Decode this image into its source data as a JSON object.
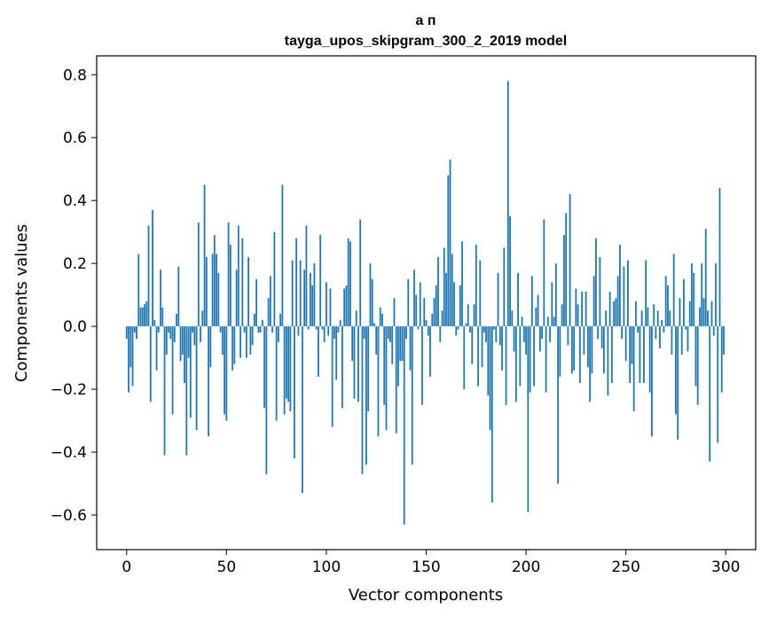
{
  "chart_data": {
    "type": "bar",
    "title_line1": "а п",
    "title_line2": "tayga_upos_skipgram_300_2_2019 model",
    "xlabel": "Vector components",
    "ylabel": "Components values",
    "xlim": [
      -15,
      315
    ],
    "ylim": [
      -0.71,
      0.86
    ],
    "xticks": [
      0,
      50,
      100,
      150,
      200,
      250,
      300
    ],
    "xtick_labels": [
      "0",
      "50",
      "100",
      "150",
      "200",
      "250",
      "300"
    ],
    "yticks": [
      -0.6,
      -0.4,
      -0.2,
      0.0,
      0.2,
      0.4,
      0.6,
      0.8
    ],
    "ytick_labels": [
      "−0.6",
      "−0.4",
      "−0.2",
      "0.0",
      "0.2",
      "0.4",
      "0.6",
      "0.8"
    ],
    "bar_color": "#1f77b4",
    "values": [
      -0.04,
      -0.21,
      -0.13,
      -0.19,
      -0.02,
      -0.04,
      0.23,
      0.06,
      0.06,
      0.07,
      0.08,
      0.32,
      -0.24,
      0.37,
      0.02,
      -0.14,
      -0.02,
      0.18,
      0.06,
      -0.41,
      -0.09,
      -0.02,
      -0.04,
      -0.28,
      -0.05,
      0.04,
      0.19,
      -0.11,
      -0.09,
      -0.18,
      -0.41,
      -0.1,
      -0.29,
      -0.02,
      -0.06,
      -0.33,
      0.33,
      -0.05,
      0.05,
      0.45,
      0.22,
      -0.35,
      -0.13,
      0.23,
      0.29,
      0.23,
      0.17,
      -0.02,
      -0.09,
      -0.28,
      -0.3,
      0.33,
      0.26,
      -0.14,
      -0.12,
      0.18,
      0.32,
      -0.1,
      0.28,
      -0.02,
      -0.1,
      0.22,
      -0.09,
      -0.06,
      0.04,
      0.15,
      -0.02,
      -0.02,
      0.02,
      -0.26,
      -0.47,
      0.09,
      0.16,
      -0.02,
      0.3,
      -0.3,
      -0.05,
      0.04,
      0.45,
      -0.28,
      -0.23,
      -0.24,
      -0.27,
      0.21,
      -0.42,
      0.28,
      -0.03,
      0.21,
      -0.53,
      0.18,
      0.32,
      -0.01,
      0.17,
      0.13,
      0.2,
      -0.01,
      -0.16,
      0.29,
      -0.01,
      -0.05,
      0.14,
      -0.03,
      0.12,
      -0.32,
      -0.04,
      -0.17,
      -0.02,
      0.02,
      -0.26,
      0.12,
      0.13,
      0.28,
      0.27,
      -0.11,
      -0.23,
      0.05,
      -0.24,
      0.34,
      -0.47,
      -0.04,
      -0.44,
      -0.27,
      0.2,
      0.15,
      0.01,
      -0.09,
      -0.35,
      0.06,
      0.04,
      -0.25,
      -0.33,
      -0.04,
      -0.05,
      -0.12,
      0.09,
      -0.34,
      -0.19,
      -0.11,
      -0.11,
      -0.63,
      -0.04,
      0.15,
      -0.14,
      -0.44,
      0.18,
      0.1,
      -0.01,
      0.14,
      -0.25,
      0.09,
      0.02,
      -0.03,
      -0.16,
      0.04,
      0.09,
      0.13,
      0.22,
      -0.05,
      0.05,
      0.25,
      0.17,
      0.48,
      0.53,
      0.23,
      0.14,
      -0.03,
      -0.01,
      0.13,
      0.27,
      -0.2,
      0.01,
      0.07,
      -0.02,
      -0.12,
      0.07,
      0.26,
      -0.19,
      0.21,
      -0.13,
      -0.02,
      -0.05,
      -0.22,
      -0.33,
      -0.56,
      -0.01,
      -0.05,
      0.17,
      -0.06,
      -0.14,
      0.25,
      -0.25,
      0.78,
      0.35,
      0.05,
      -0.08,
      -0.24,
      0.17,
      -0.19,
      0.03,
      -0.05,
      -0.09,
      -0.59,
      -0.21,
      0.16,
      -0.19,
      0.06,
      0.1,
      -0.08,
      -0.04,
      0.34,
      -0.21,
      0.03,
      -0.05,
      0.14,
      0.03,
      0.2,
      -0.5,
      -0.16,
      0.07,
      0.29,
      0.36,
      -0.06,
      0.42,
      -0.15,
      -0.14,
      0.12,
      0.07,
      -0.18,
      0.11,
      -0.09,
      0.11,
      -0.13,
      -0.24,
      -0.15,
      0.16,
      0.28,
      -0.04,
      0.22,
      -0.07,
      -0.15,
      0.05,
      -0.22,
      0.11,
      -0.18,
      0.08,
      0.09,
      0.16,
      0.26,
      -0.04,
      0.19,
      -0.11,
      0.21,
      -0.18,
      -0.12,
      -0.27,
      0.08,
      -0.02,
      -0.18,
      0.05,
      -0.18,
      0.21,
      0.06,
      -0.21,
      -0.35,
      0.07,
      -0.04,
      0.05,
      -0.07,
      0.02,
      -0.02,
      0.16,
      0.13,
      0.05,
      -0.09,
      0.23,
      -0.28,
      -0.36,
      0.09,
      -0.09,
      0.15,
      -0.01,
      -0.08,
      0.08,
      0.2,
      0.17,
      -0.19,
      -0.25,
      0.06,
      0.2,
      0.09,
      0.31,
      0.05,
      -0.43,
      0.08,
      -0.03,
      0.2,
      -0.37,
      0.44,
      -0.21,
      -0.09
    ]
  }
}
